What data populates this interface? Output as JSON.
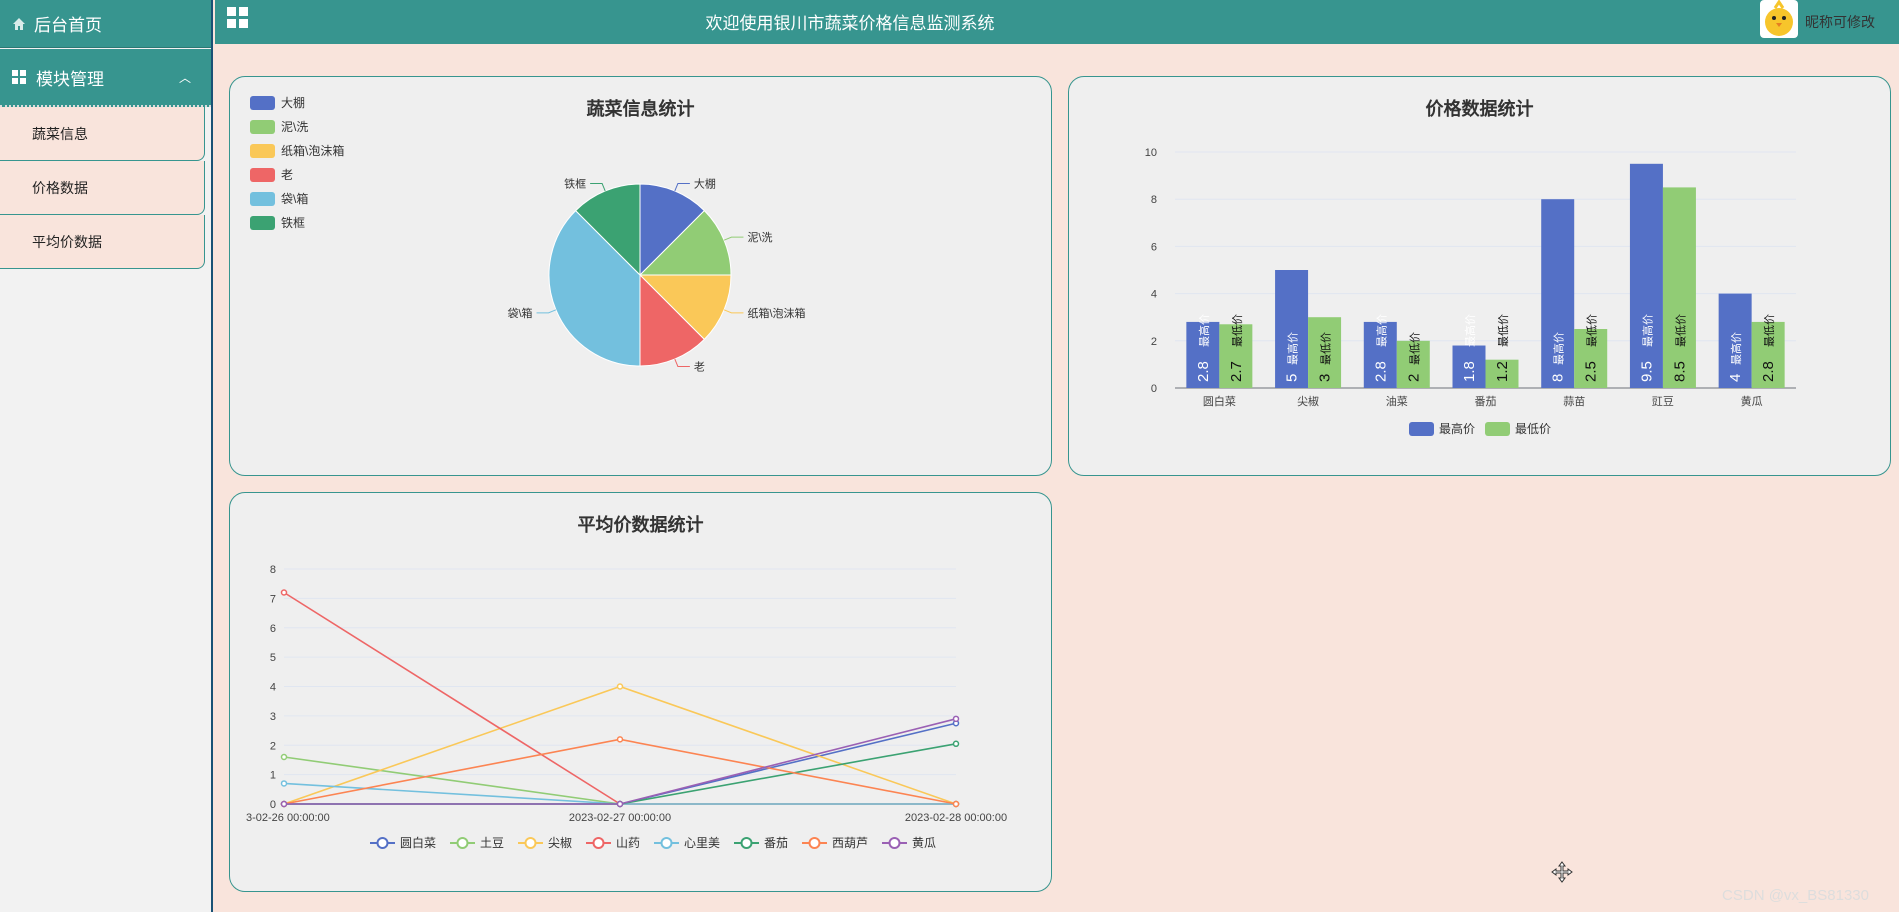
{
  "sidebar": {
    "home_label": "后台首页",
    "module_label": "模块管理",
    "items": [
      {
        "label": "蔬菜信息"
      },
      {
        "label": "价格数据"
      },
      {
        "label": "平均价数据"
      }
    ]
  },
  "header": {
    "title": "欢迎使用银川市蔬菜价格信息监测系统",
    "user_label": "昵称可修改"
  },
  "watermark": "CSDN @vx_BS81330",
  "colors": {
    "accent": "#37958f",
    "background": "#f9e4dc",
    "panel": "#efefef"
  },
  "chart_data": [
    {
      "type": "pie",
      "title": "蔬菜信息统计",
      "legend_position": "top-left",
      "slices": [
        {
          "name": "大棚",
          "value": 1,
          "color": "#5470c6"
        },
        {
          "name": "泥\\洗",
          "value": 1,
          "color": "#91cc75"
        },
        {
          "name": "纸箱\\泡沫箱",
          "value": 1,
          "color": "#fac858"
        },
        {
          "name": "老",
          "value": 1,
          "color": "#ee6666"
        },
        {
          "name": "袋\\箱",
          "value": 3,
          "color": "#73c0de"
        },
        {
          "name": "铁框",
          "value": 1,
          "color": "#3ba272"
        }
      ]
    },
    {
      "type": "bar",
      "title": "价格数据统计",
      "categories": [
        "圆白菜",
        "尖椒",
        "油菜",
        "番茄",
        "蒜苗",
        "豇豆",
        "黄瓜"
      ],
      "series": [
        {
          "name": "最高价",
          "color": "#5470c6",
          "values": [
            2.8,
            5,
            2.8,
            1.8,
            8,
            9.5,
            4
          ]
        },
        {
          "name": "最低价",
          "color": "#91cc75",
          "values": [
            2.7,
            3,
            2,
            1.2,
            2.5,
            8.5,
            2.8
          ]
        }
      ],
      "ylim": [
        0,
        10
      ],
      "yticks": [
        0,
        2,
        4,
        6,
        8,
        10
      ],
      "legend_position": "bottom"
    },
    {
      "type": "line",
      "title": "平均价数据统计",
      "x": [
        "3-02-26 00:00:00",
        "2023-02-27 00:00:00",
        "2023-02-28 00:00:00"
      ],
      "ylim": [
        0,
        8
      ],
      "yticks": [
        0,
        1,
        2,
        3,
        4,
        5,
        6,
        7,
        8
      ],
      "legend_position": "bottom",
      "series": [
        {
          "name": "圆白菜",
          "color": "#5470c6",
          "values": [
            0,
            0,
            2.75
          ]
        },
        {
          "name": "土豆",
          "color": "#91cc75",
          "values": [
            1.6,
            0,
            0
          ]
        },
        {
          "name": "尖椒",
          "color": "#fac858",
          "values": [
            0,
            4,
            0
          ]
        },
        {
          "name": "山药",
          "color": "#ee6666",
          "values": [
            7.2,
            0,
            0
          ]
        },
        {
          "name": "心里美",
          "color": "#73c0de",
          "values": [
            0.7,
            0,
            0
          ]
        },
        {
          "name": "番茄",
          "color": "#3ba272",
          "values": [
            0,
            0,
            2.05
          ]
        },
        {
          "name": "西葫芦",
          "color": "#fc8452",
          "values": [
            0,
            2.2,
            0
          ]
        },
        {
          "name": "黄瓜",
          "color": "#9a60b4",
          "values": [
            0,
            0,
            2.9
          ]
        }
      ]
    }
  ]
}
